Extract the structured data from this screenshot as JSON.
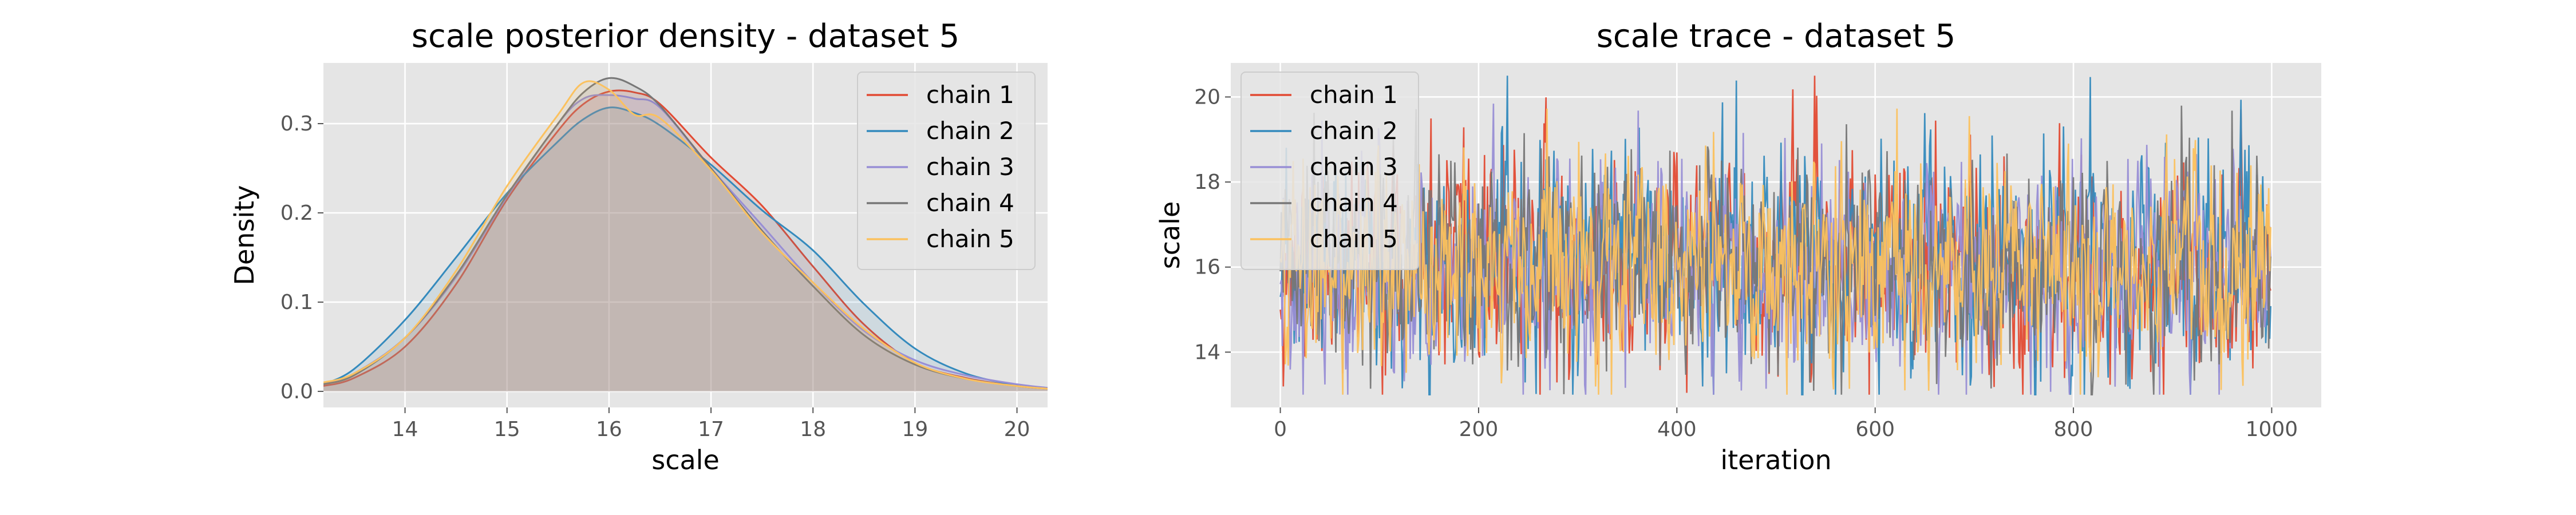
{
  "chart_data": [
    {
      "type": "line",
      "title": "scale posterior density - dataset 5",
      "xlabel": "scale",
      "ylabel": "Density",
      "xlim": [
        13.2,
        20.3
      ],
      "ylim": [
        -0.018,
        0.368
      ],
      "xticks": [
        14,
        15,
        16,
        17,
        18,
        19,
        20
      ],
      "xtick_labels": [
        "14",
        "15",
        "16",
        "17",
        "18",
        "19",
        "20"
      ],
      "yticks": [
        0.0,
        0.1,
        0.2,
        0.3
      ],
      "ytick_labels": [
        "0.0",
        "0.1",
        "0.2",
        "0.3"
      ],
      "grid": true,
      "legend_position": "top-right",
      "x": [
        13.2,
        13.5,
        14.0,
        14.5,
        15.0,
        15.5,
        15.75,
        16.0,
        16.25,
        16.5,
        17.0,
        17.5,
        18.0,
        18.5,
        19.0,
        19.5,
        20.0,
        20.3
      ],
      "series": [
        {
          "name": "chain 1",
          "color": "#E24A33",
          "values": [
            0.006,
            0.015,
            0.05,
            0.12,
            0.215,
            0.292,
            0.322,
            0.336,
            0.335,
            0.322,
            0.262,
            0.208,
            0.14,
            0.075,
            0.032,
            0.015,
            0.006,
            0.003
          ]
        },
        {
          "name": "chain 2",
          "color": "#348ABD",
          "values": [
            0.008,
            0.025,
            0.08,
            0.15,
            0.222,
            0.28,
            0.305,
            0.318,
            0.312,
            0.298,
            0.254,
            0.203,
            0.158,
            0.098,
            0.048,
            0.02,
            0.007,
            0.003
          ]
        },
        {
          "name": "chain 3",
          "color": "#988ED5",
          "values": [
            0.008,
            0.02,
            0.06,
            0.128,
            0.218,
            0.3,
            0.328,
            0.332,
            0.328,
            0.318,
            0.25,
            0.186,
            0.122,
            0.068,
            0.035,
            0.018,
            0.008,
            0.004
          ]
        },
        {
          "name": "chain 4",
          "color": "#777777",
          "values": [
            0.008,
            0.018,
            0.06,
            0.13,
            0.22,
            0.3,
            0.335,
            0.351,
            0.342,
            0.32,
            0.25,
            0.18,
            0.118,
            0.063,
            0.03,
            0.014,
            0.006,
            0.003
          ]
        },
        {
          "name": "chain 5",
          "color": "#FBC15E",
          "values": [
            0.01,
            0.02,
            0.06,
            0.135,
            0.23,
            0.31,
            0.346,
            0.338,
            0.31,
            0.306,
            0.248,
            0.178,
            0.122,
            0.07,
            0.032,
            0.014,
            0.006,
            0.003
          ]
        }
      ]
    },
    {
      "type": "line",
      "title": "scale trace - dataset 5",
      "xlabel": "iteration",
      "ylabel": "scale",
      "xlim": [
        -50,
        1050
      ],
      "ylim": [
        12.7,
        20.8
      ],
      "xticks": [
        0,
        200,
        400,
        600,
        800,
        1000
      ],
      "xtick_labels": [
        "0",
        "200",
        "400",
        "600",
        "800",
        "1000"
      ],
      "yticks": [
        14,
        16,
        18,
        20
      ],
      "ytick_labels": [
        "14",
        "16",
        "18",
        "20"
      ],
      "grid": true,
      "legend_position": "top-left",
      "n_iterations": 1000,
      "value_range": [
        13.0,
        20.5
      ],
      "series": [
        {
          "name": "chain 1",
          "color": "#E24A33",
          "mean": 16.0,
          "sd": 1.2,
          "seed": 11
        },
        {
          "name": "chain 2",
          "color": "#348ABD",
          "mean": 16.0,
          "sd": 1.25,
          "seed": 23
        },
        {
          "name": "chain 3",
          "color": "#988ED5",
          "mean": 16.0,
          "sd": 1.2,
          "seed": 37
        },
        {
          "name": "chain 4",
          "color": "#777777",
          "mean": 16.0,
          "sd": 1.2,
          "seed": 51
        },
        {
          "name": "chain 5",
          "color": "#FBC15E",
          "mean": 16.0,
          "sd": 1.2,
          "seed": 73
        }
      ]
    }
  ]
}
